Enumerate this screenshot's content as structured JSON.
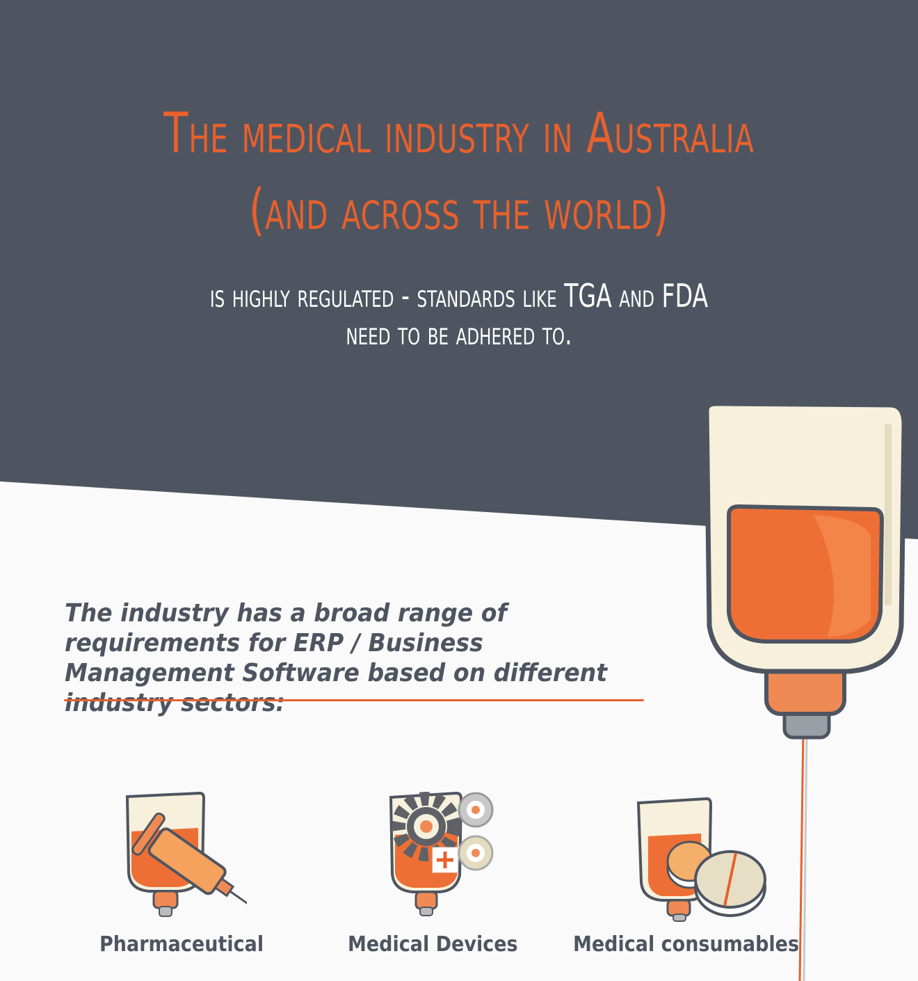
{
  "header": {
    "title_line1": "The medical industry in Australia",
    "title_line2": "(and across the world)",
    "subtitle_line1": "is highly regulated - standards like TGA and FDA",
    "subtitle_line2": "need to be adhered to."
  },
  "intro": {
    "text": "The industry has a broad range of requirements for ERP / Business Management Software based on different industry sectors:"
  },
  "sectors": [
    {
      "label": "Pharmaceutical",
      "icon": "iv-bag-syringe-icon"
    },
    {
      "label": "Medical Devices",
      "icon": "iv-bag-gears-icon"
    },
    {
      "label": "Medical consumables",
      "icon": "iv-bag-pills-icon"
    }
  ],
  "colors": {
    "dark": "#4e5561",
    "accent": "#e8602c",
    "cream": "#f6f0dc",
    "background": "#fafafa"
  }
}
